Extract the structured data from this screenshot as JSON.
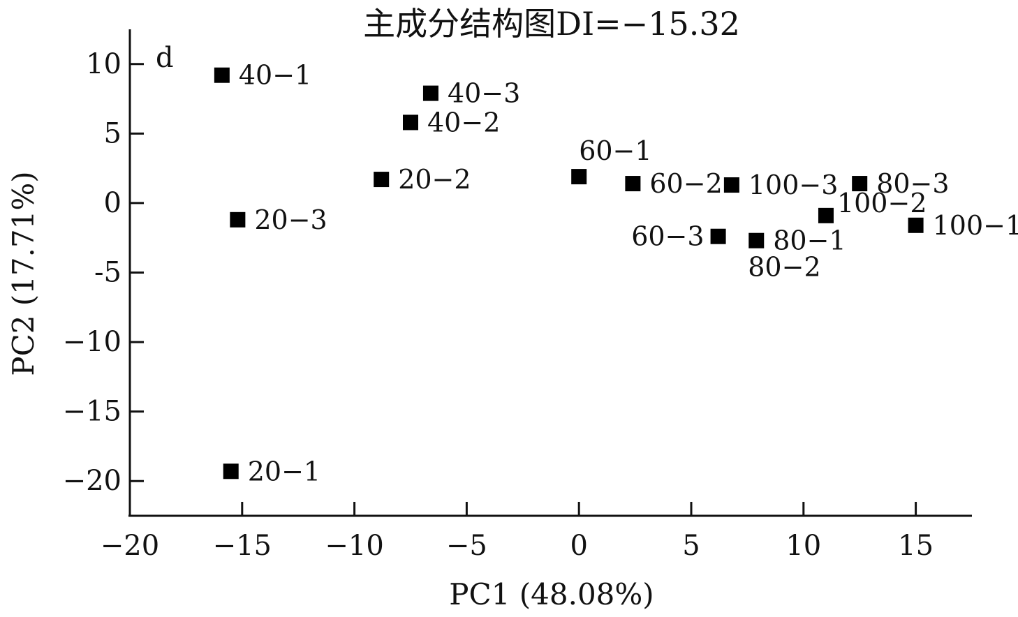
{
  "chart_data": {
    "type": "scatter",
    "title": "主成分结构图DI=−15.32",
    "panel_label": "d",
    "xlabel": "PC1 (48.08%)",
    "ylabel": "PC2 (17.71%)",
    "xlim": [
      -20,
      17.5
    ],
    "ylim": [
      -22.5,
      12.5
    ],
    "xticks": [
      -20,
      -15,
      -10,
      -5,
      0,
      5,
      10,
      15
    ],
    "xtick_labels": [
      "−20",
      "−15",
      "−10",
      "−5",
      "0",
      "5",
      "10",
      "15"
    ],
    "yticks": [
      10,
      5,
      0,
      -5,
      -10,
      -15,
      -20
    ],
    "ytick_labels": [
      "10",
      "5",
      "0",
      "-5",
      "−10",
      "−15",
      "−20"
    ],
    "grid": false,
    "marker": "square",
    "color": "#000000",
    "points": [
      {
        "label": "40-1",
        "display": "40−1",
        "x": -15.9,
        "y": 9.2,
        "pos": "right"
      },
      {
        "label": "40-3",
        "display": "40−3",
        "x": -6.6,
        "y": 7.9,
        "pos": "right"
      },
      {
        "label": "40-2",
        "display": "40−2",
        "x": -7.5,
        "y": 5.8,
        "pos": "right"
      },
      {
        "label": "20-2",
        "display": "20−2",
        "x": -8.8,
        "y": 1.7,
        "pos": "right"
      },
      {
        "label": "20-3",
        "display": "20−3",
        "x": -15.2,
        "y": -1.2,
        "pos": "right"
      },
      {
        "label": "20-1",
        "display": "20−1",
        "x": -15.5,
        "y": -19.3,
        "pos": "right"
      },
      {
        "label": "60-1",
        "display": "60−1",
        "x": 0.0,
        "y": 1.9,
        "pos": "above"
      },
      {
        "label": "60-2",
        "display": "60−2",
        "x": 2.4,
        "y": 1.4,
        "pos": "right"
      },
      {
        "label": "100-3",
        "display": "100−3",
        "x": 6.8,
        "y": 1.3,
        "pos": "right"
      },
      {
        "label": "80-3",
        "display": "80−3",
        "x": 12.5,
        "y": 1.4,
        "pos": "right"
      },
      {
        "label": "100-2",
        "display": "100−2",
        "x": 11.0,
        "y": -0.9,
        "pos": "right-up"
      },
      {
        "label": "100-1",
        "display": "100−1",
        "x": 15.0,
        "y": -1.6,
        "pos": "right"
      },
      {
        "label": "60-3",
        "display": "60−3",
        "x": 6.2,
        "y": -2.4,
        "pos": "left"
      },
      {
        "label": "80-1",
        "display": "80−1",
        "x": 7.9,
        "y": -2.7,
        "pos": "right"
      },
      {
        "label": "80-2",
        "display": "80−2",
        "x": 7.9,
        "y": -2.7,
        "pos": "below"
      }
    ]
  }
}
